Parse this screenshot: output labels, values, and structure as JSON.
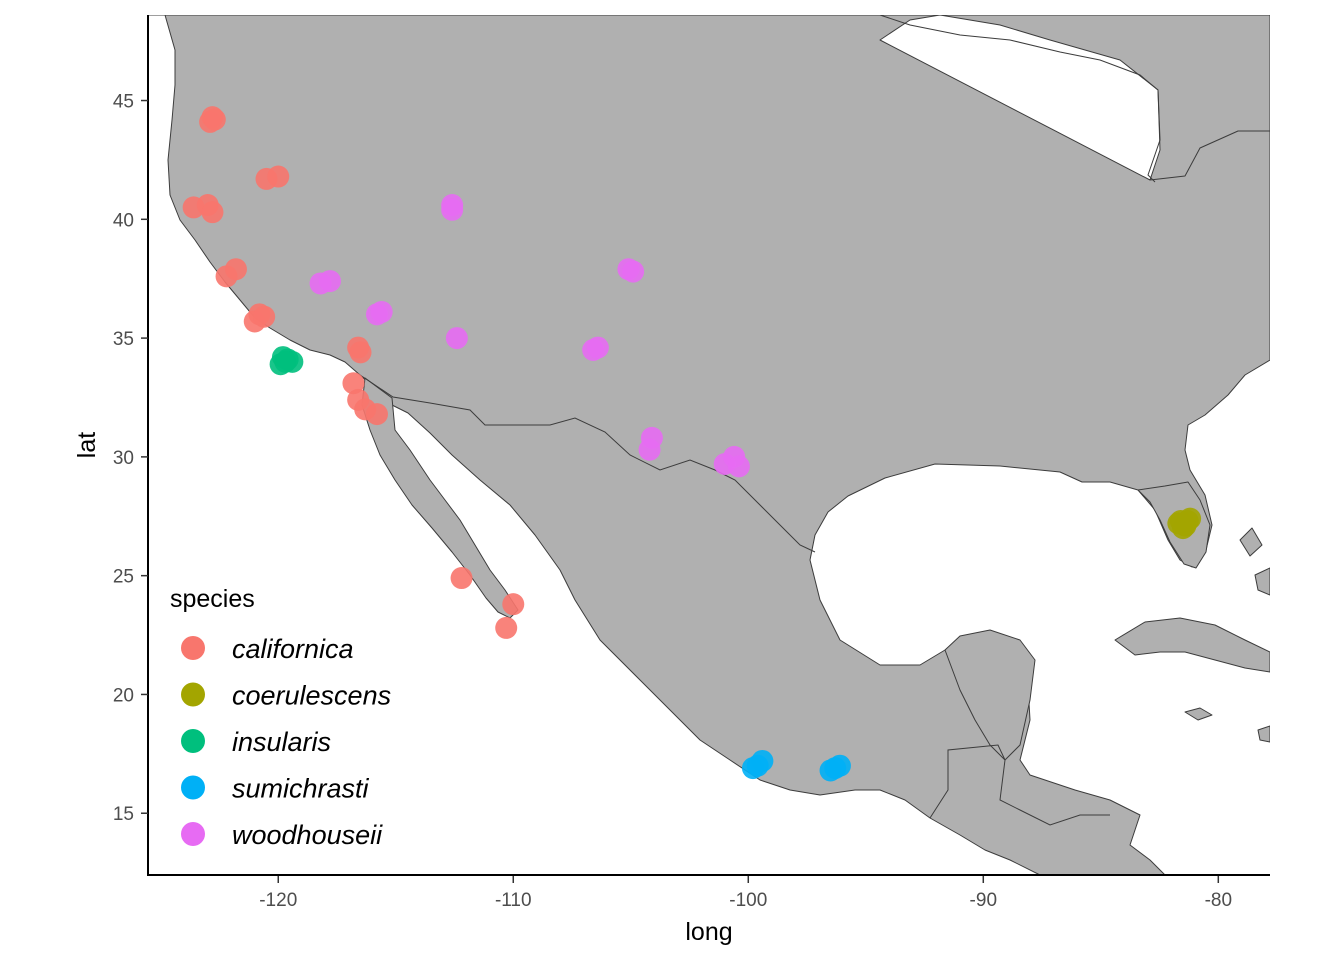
{
  "chart_data": {
    "type": "scatter",
    "xlabel": "long",
    "ylabel": "lat",
    "xlim": [
      -125.5,
      -77.8
    ],
    "ylim": [
      12.4,
      48.6
    ],
    "x_ticks": [
      -120,
      -110,
      -100,
      -90,
      -80
    ],
    "y_ticks": [
      15,
      20,
      25,
      30,
      35,
      40,
      45
    ],
    "grid": false,
    "legend": {
      "title": "species",
      "position": "bottom-left"
    },
    "series": [
      {
        "name": "californica",
        "color": "#F8766D",
        "x": [
          -122.8,
          -122.9,
          -122.7,
          -123.6,
          -123.0,
          -122.8,
          -122.2,
          -121.8,
          -120.8,
          -121.0,
          -120.6,
          -120.5,
          -120.0,
          -116.6,
          -116.5,
          -116.8,
          -116.6,
          -116.3,
          -115.8,
          -112.2,
          -110.0,
          -110.3
        ],
        "y": [
          44.3,
          44.1,
          44.2,
          40.5,
          40.6,
          40.3,
          37.6,
          37.9,
          36.0,
          35.7,
          35.9,
          41.7,
          41.8,
          34.6,
          34.4,
          33.1,
          32.4,
          32.0,
          31.8,
          24.9,
          23.8,
          22.8
        ]
      },
      {
        "name": "coerulescens",
        "color": "#A3A500",
        "x": [
          -81.6,
          -81.4,
          -81.2,
          -81.5,
          -81.7,
          -81.3
        ],
        "y": [
          27.3,
          27.1,
          27.4,
          27.0,
          27.2,
          27.3
        ]
      },
      {
        "name": "insularis",
        "color": "#00BF7D",
        "x": [
          -119.9,
          -119.6,
          -119.8,
          -119.4,
          -119.7
        ],
        "y": [
          33.9,
          34.1,
          34.2,
          34.0,
          34.0
        ]
      },
      {
        "name": "sumichrasti",
        "color": "#00B0F6",
        "x": [
          -99.8,
          -99.4,
          -99.6,
          -96.5,
          -96.1,
          -96.3
        ],
        "y": [
          16.9,
          17.2,
          17.0,
          16.8,
          17.0,
          16.9
        ]
      },
      {
        "name": "woodhouseii",
        "color": "#E76BF3",
        "x": [
          -112.6,
          -112.6,
          -118.2,
          -117.8,
          -115.8,
          -115.6,
          -112.4,
          -105.1,
          -104.9,
          -106.6,
          -106.4,
          -104.1,
          -104.2,
          -101.0,
          -100.6,
          -100.4
        ],
        "y": [
          40.6,
          40.4,
          37.3,
          37.4,
          36.0,
          36.1,
          35.0,
          37.9,
          37.8,
          34.5,
          34.6,
          30.8,
          30.3,
          29.7,
          30.0,
          29.6
        ]
      }
    ]
  }
}
